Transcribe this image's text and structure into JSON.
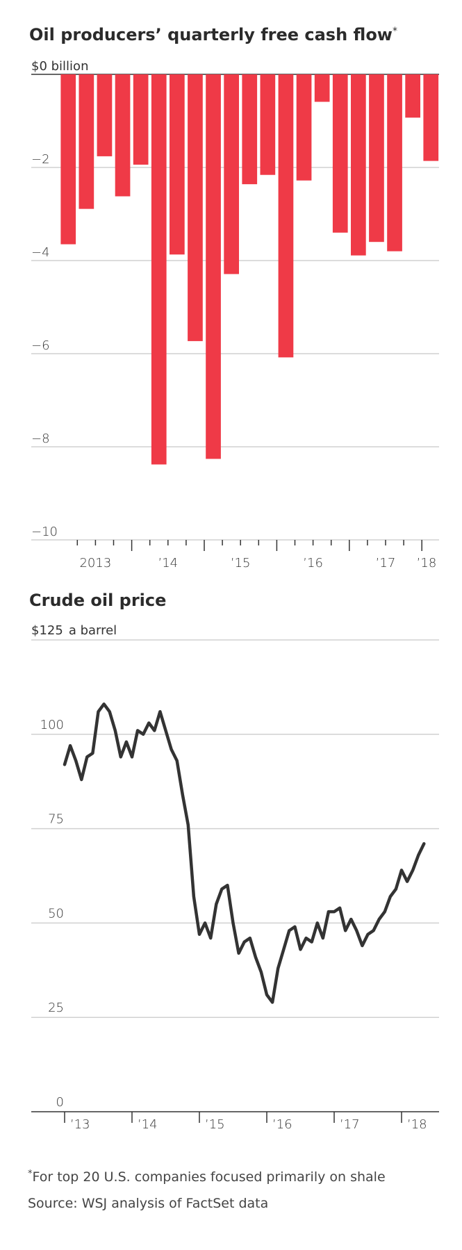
{
  "colors": {
    "bar": "#ef3a47",
    "line": "#333333",
    "grid": "#d0d0d0",
    "axis": "#333333"
  },
  "chart_data": [
    {
      "type": "bar",
      "title": "Oil producers’ quarterly free cash flow",
      "title_mark": "*",
      "ylabel": "$0 billion",
      "ylim": [
        -10,
        0
      ],
      "yticks": [
        0,
        -2,
        -4,
        -6,
        -8,
        -10
      ],
      "ytick_labels": [
        "$0 billion",
        "−2",
        "−4",
        "−6",
        "−8",
        "−10"
      ],
      "grid": true,
      "categories": [
        "Q1 2013",
        "Q2 2013",
        "Q3 2013",
        "Q4 2013",
        "Q1 2014",
        "Q2 2014",
        "Q3 2014",
        "Q4 2014",
        "Q1 2015",
        "Q2 2015",
        "Q3 2015",
        "Q4 2015",
        "Q1 2016",
        "Q2 2016",
        "Q3 2016",
        "Q4 2016",
        "Q1 2017",
        "Q2 2017",
        "Q3 2017",
        "Q4 2017",
        "Q1 2018"
      ],
      "values": [
        -3.65,
        -2.89,
        -1.76,
        -2.62,
        -1.94,
        -8.38,
        -3.87,
        -5.73,
        -8.26,
        -4.29,
        -2.36,
        -2.16,
        -6.08,
        -2.28,
        -0.59,
        -3.4,
        -3.89,
        -3.6,
        -3.8,
        -0.93,
        -1.86
      ],
      "xtick_labels": [
        "2013",
        "’14",
        "’15",
        "’16",
        "’17",
        "’18"
      ]
    },
    {
      "type": "line",
      "title": "Crude oil price",
      "ylabel": "$125 a barrel",
      "ylim": [
        0,
        125
      ],
      "yticks": [
        0,
        25,
        50,
        75,
        100,
        125
      ],
      "ytick_labels": [
        "0",
        "25",
        "50",
        "75",
        "100",
        "$125"
      ],
      "ytick_unit": "a barrel",
      "grid": true,
      "xtick_labels": [
        "’13",
        "’14",
        "’15",
        "’16",
        "’17",
        "’18"
      ],
      "series": [
        {
          "name": "Crude oil price",
          "start": "2013-01",
          "frequency": "monthly",
          "values": [
            92,
            97,
            93,
            88,
            94,
            95,
            106,
            108,
            106,
            101,
            94,
            98,
            94,
            101,
            100,
            103,
            101,
            106,
            101,
            96,
            93,
            84,
            76,
            57,
            47,
            50,
            46,
            55,
            59,
            60,
            50,
            42,
            45,
            46,
            41,
            37,
            31,
            29,
            38,
            43,
            48,
            49,
            43,
            46,
            45,
            50,
            46,
            53,
            53,
            54,
            48,
            51,
            48,
            44,
            47,
            48,
            51,
            53,
            57,
            59,
            64,
            61,
            64,
            68,
            71
          ]
        }
      ]
    }
  ],
  "footnote": {
    "mark": "*",
    "text": "For top 20 U.S. companies focused primarily on shale",
    "source": "Source: WSJ analysis of FactSet data"
  }
}
